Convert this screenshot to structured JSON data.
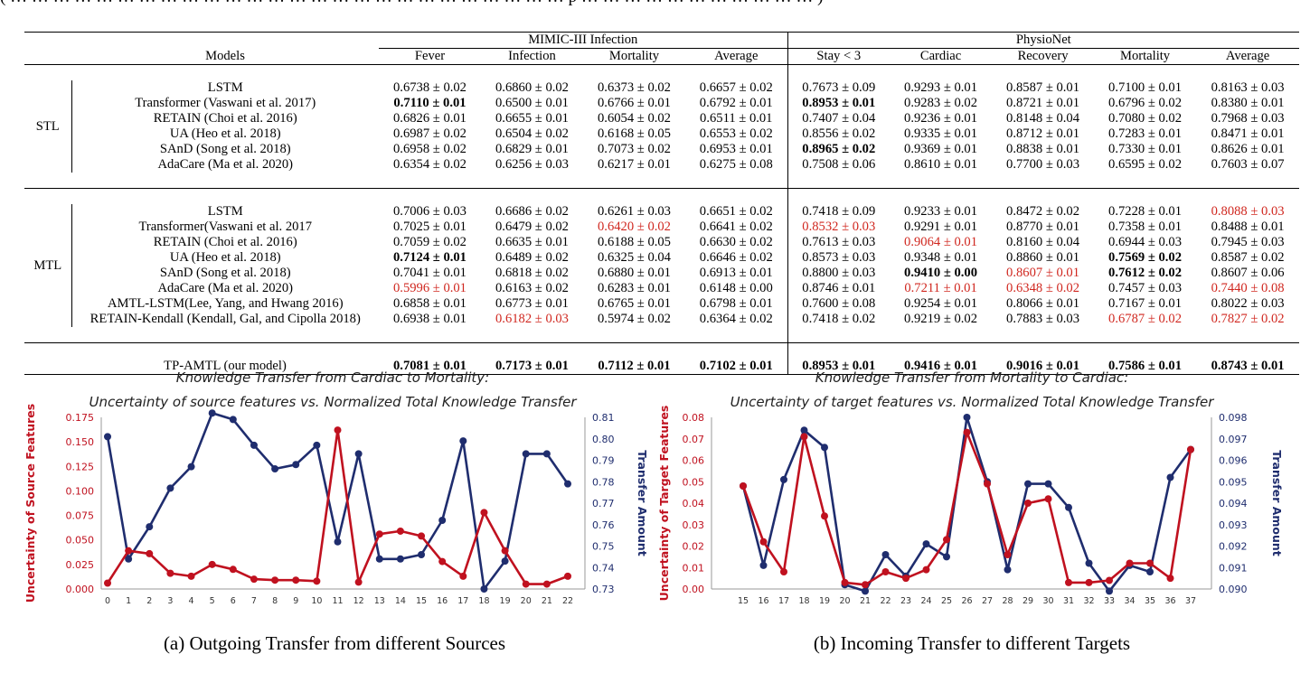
{
  "top_text": "( … … … … … … … … … … … … … … … … … … … … … … … … … … p … … … … … … … … … … … )",
  "table": {
    "models_header": "Models",
    "group1": "MIMIC-III Infection",
    "group2": "PhysioNet",
    "cols": [
      "Fever",
      "Infection",
      "Mortality",
      "Average",
      "Stay < 3",
      "Cardiac",
      "Recovery",
      "Mortality",
      "Average"
    ],
    "stl_label": "STL",
    "mtl_label": "MTL",
    "stl_rows": [
      {
        "name": "LSTM",
        "v": [
          "0.6738 ± 0.02",
          "0.6860 ± 0.02",
          "0.6373 ± 0.02",
          "0.6657 ± 0.02",
          "0.7673 ± 0.09",
          "0.9293 ± 0.01",
          "0.8587 ± 0.01",
          "0.7100 ± 0.01",
          "0.8163 ± 0.03"
        ],
        "bold": [],
        "red": []
      },
      {
        "name": "Transformer (Vaswani et al. 2017)",
        "v": [
          "0.7110 ± 0.01",
          "0.6500 ± 0.01",
          "0.6766 ± 0.01",
          "0.6792 ± 0.01",
          "0.8953 ± 0.01",
          "0.9283 ± 0.02",
          "0.8721 ± 0.01",
          "0.6796 ± 0.02",
          "0.8380 ± 0.01"
        ],
        "bold": [
          0,
          4
        ],
        "red": []
      },
      {
        "name": "RETAIN (Choi et al. 2016)",
        "v": [
          "0.6826 ± 0.01",
          "0.6655 ± 0.01",
          "0.6054 ± 0.02",
          "0.6511 ± 0.01",
          "0.7407 ± 0.04",
          "0.9236 ± 0.01",
          "0.8148 ± 0.04",
          "0.7080 ± 0.02",
          "0.7968 ± 0.03"
        ],
        "bold": [],
        "red": []
      },
      {
        "name": "UA (Heo et al. 2018)",
        "v": [
          "0.6987 ± 0.02",
          "0.6504 ± 0.02",
          "0.6168 ± 0.05",
          "0.6553 ± 0.02",
          "0.8556 ± 0.02",
          "0.9335 ± 0.01",
          "0.8712 ± 0.01",
          "0.7283 ± 0.01",
          "0.8471 ± 0.01"
        ],
        "bold": [],
        "red": []
      },
      {
        "name": "SAnD (Song et al. 2018)",
        "v": [
          "0.6958 ± 0.02",
          "0.6829 ± 0.01",
          "0.7073 ± 0.02",
          "0.6953 ± 0.01",
          "0.8965 ± 0.02",
          "0.9369 ± 0.01",
          "0.8838 ± 0.01",
          "0.7330 ± 0.01",
          "0.8626 ± 0.01"
        ],
        "bold": [
          4
        ],
        "red": []
      },
      {
        "name": "AdaCare (Ma et al. 2020)",
        "v": [
          "0.6354 ± 0.02",
          "0.6256 ± 0.03",
          "0.6217 ± 0.01",
          "0.6275 ± 0.08",
          "0.7508 ± 0.06",
          "0.8610 ± 0.01",
          "0.7700 ± 0.03",
          "0.6595 ± 0.02",
          "0.7603 ± 0.07"
        ],
        "bold": [],
        "red": []
      }
    ],
    "mtl_rows": [
      {
        "name": "LSTM",
        "v": [
          "0.7006 ± 0.03",
          "0.6686 ± 0.02",
          "0.6261 ± 0.03",
          "0.6651 ± 0.02",
          "0.7418 ± 0.09",
          "0.9233 ± 0.01",
          "0.8472 ± 0.02",
          "0.7228 ± 0.01",
          "0.8088 ± 0.03"
        ],
        "bold": [],
        "red": [
          8
        ]
      },
      {
        "name": "Transformer(Vaswani et al. 2017",
        "v": [
          "0.7025 ± 0.01",
          "0.6479 ± 0.02",
          "0.6420 ± 0.02",
          "0.6641 ± 0.02",
          "0.8532 ± 0.03",
          "0.9291 ± 0.01",
          "0.8770 ± 0.01",
          "0.7358 ± 0.01",
          "0.8488 ± 0.01"
        ],
        "bold": [],
        "red": [
          2,
          4
        ]
      },
      {
        "name": "RETAIN (Choi et al. 2016)",
        "v": [
          "0.7059 ± 0.02",
          "0.6635 ± 0.01",
          "0.6188 ± 0.05",
          "0.6630 ± 0.02",
          "0.7613 ± 0.03",
          "0.9064 ± 0.01",
          "0.8160 ± 0.04",
          "0.6944 ± 0.03",
          "0.7945 ± 0.03"
        ],
        "bold": [],
        "red": [
          5
        ]
      },
      {
        "name": "UA (Heo et al. 2018)",
        "v": [
          "0.7124 ± 0.01",
          "0.6489 ± 0.02",
          "0.6325 ± 0.04",
          "0.6646 ± 0.02",
          "0.8573 ± 0.03",
          "0.9348 ± 0.01",
          "0.8860 ± 0.01",
          "0.7569 ± 0.02",
          "0.8587 ± 0.02"
        ],
        "bold": [
          0,
          7
        ],
        "red": []
      },
      {
        "name": "SAnD (Song et al. 2018)",
        "v": [
          "0.7041 ± 0.01",
          "0.6818 ± 0.02",
          "0.6880 ± 0.01",
          "0.6913 ± 0.01",
          "0.8800 ± 0.03",
          "0.9410 ± 0.00",
          "0.8607 ± 0.01",
          "0.7612 ± 0.02",
          "0.8607 ± 0.06"
        ],
        "bold": [
          5,
          7
        ],
        "red": [
          6
        ]
      },
      {
        "name": "AdaCare (Ma et al. 2020)",
        "v": [
          "0.5996 ± 0.01",
          "0.6163 ± 0.02",
          "0.6283 ± 0.01",
          "0.6148 ± 0.00",
          "0.8746 ± 0.01",
          "0.7211 ± 0.01",
          "0.6348 ± 0.02",
          "0.7457 ± 0.03",
          "0.7440 ± 0.08"
        ],
        "bold": [],
        "red": [
          0,
          5,
          6,
          8
        ]
      },
      {
        "name": "AMTL-LSTM(Lee, Yang, and Hwang 2016)",
        "v": [
          "0.6858 ± 0.01",
          "0.6773 ± 0.01",
          "0.6765 ± 0.01",
          "0.6798 ± 0.01",
          "0.7600 ± 0.08",
          "0.9254 ± 0.01",
          "0.8066 ± 0.01",
          "0.7167 ± 0.01",
          "0.8022 ± 0.03"
        ],
        "bold": [],
        "red": []
      },
      {
        "name": "RETAIN-Kendall (Kendall, Gal, and Cipolla 2018)",
        "v": [
          "0.6938 ± 0.01",
          "0.6182 ± 0.03",
          "0.5974 ± 0.02",
          "0.6364 ± 0.02",
          "0.7418 ± 0.02",
          "0.9219 ± 0.02",
          "0.7883 ± 0.03",
          "0.6787 ± 0.02",
          "0.7827 ± 0.02"
        ],
        "bold": [],
        "red": [
          1,
          7,
          8
        ]
      }
    ],
    "ours": {
      "name": "TP-AMTL (our model)",
      "v": [
        "0.7081 ± 0.01",
        "0.7173 ± 0.01",
        "0.7112 ± 0.01",
        "0.7102 ± 0.01",
        "0.8953 ± 0.01",
        "0.9416 ± 0.01",
        "0.9016 ± 0.01",
        "0.7586 ± 0.01",
        "0.8743 ± 0.01"
      ],
      "bold": [
        0,
        1,
        2,
        3,
        4,
        5,
        6,
        7,
        8
      ],
      "red": []
    }
  },
  "chart_data": [
    {
      "type": "line",
      "title": "Knowledge Transfer from Cardiac to Mortality:",
      "subtitle": "Uncertainty of source features vs. Normalized Total Knowledge Transfer",
      "ylabel": "Uncertainty of Source Features",
      "y2label": "Transfer Amount",
      "x": [
        0,
        1,
        2,
        3,
        4,
        5,
        6,
        7,
        8,
        9,
        10,
        11,
        12,
        13,
        14,
        15,
        16,
        17,
        18,
        19,
        20,
        21,
        22
      ],
      "xticks": [
        "0",
        "1",
        "2",
        "3",
        "4",
        "5",
        "6",
        "7",
        "8",
        "9",
        "10",
        "11",
        "12",
        "13",
        "14",
        "15",
        "16",
        "17",
        "18",
        "19",
        "20",
        "21",
        "22"
      ],
      "ylim": [
        0,
        0.175
      ],
      "yticks": [
        "0.000",
        "0.025",
        "0.050",
        "0.075",
        "0.100",
        "0.125",
        "0.150",
        "0.175"
      ],
      "y2lim": [
        0.73,
        0.81
      ],
      "y2ticks": [
        "0.73",
        "0.74",
        "0.75",
        "0.76",
        "0.77",
        "0.78",
        "0.79",
        "0.80",
        "0.81"
      ],
      "series": [
        {
          "axis": "left",
          "color": "#c0111f",
          "values": [
            0.006,
            0.039,
            0.036,
            0.016,
            0.013,
            0.025,
            0.02,
            0.01,
            0.009,
            0.009,
            0.008,
            0.162,
            0.007,
            0.056,
            0.059,
            0.054,
            0.028,
            0.013,
            0.078,
            0.039,
            0.005,
            0.005,
            0.013
          ]
        },
        {
          "axis": "right",
          "color": "#1f2d6e",
          "values": [
            0.801,
            0.744,
            0.759,
            0.777,
            0.787,
            0.812,
            0.809,
            0.797,
            0.786,
            0.788,
            0.797,
            0.752,
            0.793,
            0.744,
            0.744,
            0.746,
            0.762,
            0.799,
            0.73,
            0.743,
            0.793,
            0.793,
            0.779
          ]
        }
      ]
    },
    {
      "type": "line",
      "title": "Knowledge Transfer from Mortality to Cardiac:",
      "subtitle": "Uncertainty of target features vs. Normalized Total Knowledge Transfer",
      "ylabel": "Uncertainty of Target Features",
      "y2label": "Transfer Amount",
      "x": [
        15,
        16,
        17,
        18,
        19,
        20,
        21,
        22,
        23,
        24,
        25,
        26,
        27,
        28,
        29,
        30,
        31,
        32,
        33,
        34,
        35,
        36,
        37
      ],
      "xticks": [
        "15",
        "16",
        "17",
        "18",
        "19",
        "20",
        "21",
        "22",
        "23",
        "24",
        "25",
        "26",
        "27",
        "28",
        "29",
        "30",
        "31",
        "32",
        "33",
        "34",
        "35",
        "36",
        "37"
      ],
      "ylim": [
        0,
        0.08
      ],
      "yticks": [
        "0.00",
        "0.01",
        "0.02",
        "0.03",
        "0.04",
        "0.05",
        "0.06",
        "0.07",
        "0.08"
      ],
      "y2lim": [
        0.09,
        0.098
      ],
      "y2ticks": [
        "0.090",
        "0.091",
        "0.092",
        "0.093",
        "0.094",
        "0.095",
        "0.096",
        "0.097",
        "0.098"
      ],
      "series": [
        {
          "axis": "left",
          "color": "#c0111f",
          "values": [
            0.048,
            0.022,
            0.008,
            0.071,
            0.034,
            0.003,
            0.002,
            0.008,
            0.005,
            0.009,
            0.023,
            0.073,
            0.049,
            0.016,
            0.04,
            0.042,
            0.003,
            0.003,
            0.004,
            0.012,
            0.012,
            0.005,
            0.065
          ]
        },
        {
          "axis": "right",
          "color": "#1f2d6e",
          "values": [
            0.0948,
            0.0911,
            0.0951,
            0.0974,
            0.0966,
            0.0902,
            0.0899,
            0.0916,
            0.0906,
            0.0921,
            0.0915,
            0.098,
            0.095,
            0.0909,
            0.0949,
            0.0949,
            0.0938,
            0.0912,
            0.0899,
            0.0911,
            0.0908,
            0.0952,
            0.0965
          ]
        }
      ]
    }
  ],
  "captions": {
    "a": "(a) Outgoing Transfer from different Sources",
    "b": "(b) Incoming Transfer to different Targets"
  }
}
